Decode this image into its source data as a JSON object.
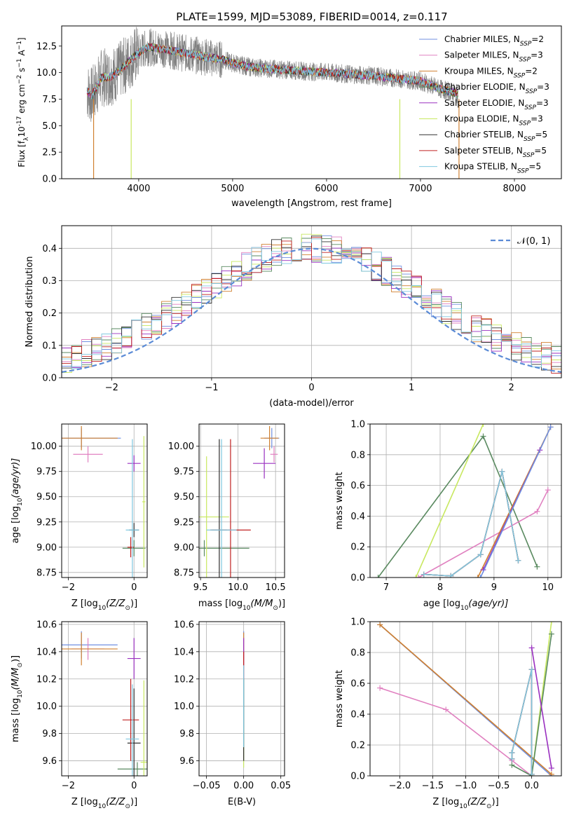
{
  "title": "PLATE=1599, MJD=53089, FIBERID=0014, z=0.117",
  "colors": {
    "Chabrier MILES": "#6f8fe0",
    "Salpeter MILES": "#e080c0",
    "Kroupa MILES": "#d08030",
    "Chabrier ELODIE": "#5a8a60",
    "Salpeter ELODIE": "#9a30c0",
    "Kroupa ELODIE": "#c8e860",
    "Chabrier STELIB": "#303030",
    "Salpeter STELIB": "#c02020",
    "Kroupa STELIB": "#80c8e0",
    "data": "#808080",
    "normal": "#5b8bd6"
  },
  "chart_data": [
    {
      "id": "spectrum",
      "type": "line",
      "xlabel": "wavelength [Angstrom, rest frame]",
      "ylabel": "Flux [f",
      "ylabel_sub": "λ",
      "ylabel_rest": "10",
      "ylabel_exp": "-17",
      "ylabel_tail": " erg cm",
      "xlim": [
        3180,
        8500
      ],
      "ylim": [
        0,
        14.4
      ],
      "xticks": [
        "4000",
        "5000",
        "6000",
        "7000",
        "8000"
      ],
      "yticks": [
        "0.0",
        "2.5",
        "5.0",
        "7.5",
        "10.0",
        "12.5"
      ],
      "legend_position": "upper right",
      "legend": [
        {
          "model": "Chabrier MILES",
          "label": "Chabrier MILES, N",
          "n": "=2"
        },
        {
          "model": "Salpeter MILES",
          "label": "Salpeter MILES, N",
          "n": "=3"
        },
        {
          "model": "Kroupa MILES",
          "label": "Kroupa MILES, N",
          "n": "=2"
        },
        {
          "model": "Chabrier ELODIE",
          "label": "Chabrier ELODIE, N",
          "n": "=3"
        },
        {
          "model": "Salpeter ELODIE",
          "label": "Salpeter ELODIE, N",
          "n": "=3"
        },
        {
          "model": "Kroupa ELODIE",
          "label": "Kroupa ELODIE, N",
          "n": "=3"
        },
        {
          "model": "Chabrier STELIB",
          "label": "Chabrier STELIB, N",
          "n": "=5"
        },
        {
          "model": "Salpeter STELIB",
          "label": "Salpeter STELIB, N",
          "n": "=5"
        },
        {
          "model": "Kroupa STELIB",
          "label": "Kroupa STELIB, N",
          "n": "=5"
        }
      ],
      "model_continuum": {
        "x": [
          3450,
          3500,
          3550,
          3600,
          3700,
          3800,
          3900,
          4000,
          4100,
          4200,
          4300,
          4500,
          4700,
          4900,
          5000,
          5200,
          5500,
          6000,
          6500,
          7000,
          7200,
          7400
        ],
        "y": [
          8.3,
          7.8,
          8.6,
          9.5,
          9.6,
          10.2,
          11.1,
          11.9,
          12.4,
          12.3,
          12.2,
          11.8,
          11.5,
          11.2,
          10.9,
          10.5,
          10.3,
          10.0,
          9.7,
          9.2,
          8.5,
          8.0
        ]
      }
    },
    {
      "id": "residuals",
      "type": "histogram",
      "xlabel": "(data-model)/error",
      "ylabel": "Normed distribution",
      "xlim": [
        -2.5,
        2.5
      ],
      "ylim": [
        0,
        0.47
      ],
      "xticks": [
        "−2",
        "−1",
        "0",
        "1",
        "2"
      ],
      "yticks": [
        "0.0",
        "0.1",
        "0.2",
        "0.3",
        "0.4"
      ],
      "normal_label": "𝒩(0, 1)",
      "grid": true
    },
    {
      "id": "age-Z",
      "type": "errorbar",
      "xlabel": "Z [log",
      "xlabel_sub": "10",
      "xlabel_rest": "(Z/Z",
      "ylabel": "age  [log",
      "ylabel_sub": "10",
      "ylabel_rest": "(age/yr)]",
      "xlim": [
        -2.2,
        0.4
      ],
      "ylim": [
        8.7,
        10.22
      ],
      "xticks": [
        "−2",
        "0"
      ],
      "yticks": [
        "8.75",
        "9.00",
        "9.25",
        "9.50",
        "9.75",
        "10.00"
      ],
      "points": [
        {
          "model": "Chabrier MILES",
          "x": -1.6,
          "xerr": 1.2,
          "y": 10.08,
          "yerr": 0.1
        },
        {
          "model": "Salpeter MILES",
          "x": -1.4,
          "xerr": 0.45,
          "y": 9.92,
          "yerr": 0.08
        },
        {
          "model": "Kroupa MILES",
          "x": -1.6,
          "xerr": 1.1,
          "y": 10.08,
          "yerr": 0.12
        },
        {
          "model": "Chabrier ELODIE",
          "x": 0.0,
          "xerr": 0.35,
          "y": 8.99,
          "yerr": 0.08
        },
        {
          "model": "Salpeter ELODIE",
          "x": 0.0,
          "xerr": 0.2,
          "y": 9.83,
          "yerr": 0.08
        },
        {
          "model": "Kroupa ELODIE",
          "x": 0.3,
          "xerr": 0.05,
          "y": 9.45,
          "yerr": 0.65
        },
        {
          "model": "Chabrier STELIB",
          "x": 0.0,
          "xerr": 0.15,
          "y": 9.17,
          "yerr": 0.07
        },
        {
          "model": "Salpeter STELIB",
          "x": -0.1,
          "xerr": 0.1,
          "y": 9.0,
          "yerr": 0.1
        },
        {
          "model": "Kroupa STELIB",
          "x": -0.05,
          "xerr": 0.2,
          "y": 9.17,
          "yerr": 0.9
        }
      ]
    },
    {
      "id": "age-mass",
      "type": "errorbar",
      "xlabel": "mass [log",
      "xlabel_sub": "10",
      "xlabel_rest": "(M/M",
      "xlim": [
        9.48,
        10.62
      ],
      "ylim": [
        8.7,
        10.22
      ],
      "xticks": [
        "9.5",
        "10.0",
        "10.5"
      ],
      "yticks": [
        "8.75",
        "9.00",
        "9.25",
        "9.50",
        "9.75",
        "10.00"
      ],
      "points": [
        {
          "model": "Chabrier MILES",
          "x": 10.45,
          "xerr": 0.1,
          "y": 10.08,
          "yerr": 0.1
        },
        {
          "model": "Salpeter MILES",
          "x": 10.48,
          "xerr": 0.05,
          "y": 9.92,
          "yerr": 0.08
        },
        {
          "model": "Kroupa MILES",
          "x": 10.42,
          "xerr": 0.12,
          "y": 10.08,
          "yerr": 0.12
        },
        {
          "model": "Chabrier ELODIE",
          "x": 9.55,
          "xerr": 0.6,
          "y": 8.99,
          "yerr": 0.08
        },
        {
          "model": "Salpeter ELODIE",
          "x": 10.35,
          "xerr": 0.15,
          "y": 9.83,
          "yerr": 0.15
        },
        {
          "model": "Kroupa ELODIE",
          "x": 9.58,
          "xerr": 0.3,
          "y": 9.3,
          "yerr": 0.6
        },
        {
          "model": "Chabrier STELIB",
          "x": 9.75,
          "xerr": 0.1,
          "y": 9.17,
          "yerr": 0.9
        },
        {
          "model": "Salpeter STELIB",
          "x": 9.9,
          "xerr": 0.27,
          "y": 9.17,
          "yerr": 0.9
        },
        {
          "model": "Kroupa STELIB",
          "x": 9.78,
          "xerr": 0.2,
          "y": 9.17,
          "yerr": 0.9
        }
      ]
    },
    {
      "id": "weight-age",
      "type": "line",
      "xlabel": "age  [log",
      "xlabel_sub": "10",
      "xlabel_rest": "(age/yr)]",
      "ylabel": "mass weight",
      "xlim": [
        6.7,
        10.25
      ],
      "ylim": [
        0,
        1.0
      ],
      "xticks": [
        "7",
        "8",
        "9",
        "10"
      ],
      "yticks": [
        "0.0",
        "0.2",
        "0.4",
        "0.6",
        "0.8",
        "1.0"
      ],
      "series": [
        {
          "model": "Chabrier ELODIE",
          "x": [
            6.85,
            8.8,
            9.8
          ],
          "y": [
            0.0,
            0.92,
            0.07
          ]
        },
        {
          "model": "Kroupa ELODIE",
          "x": [
            7.55,
            8.8
          ],
          "y": [
            0.0,
            1.0
          ]
        },
        {
          "model": "Salpeter MILES",
          "x": [
            7.6,
            9.8,
            10.0
          ],
          "y": [
            0.0,
            0.43,
            0.57
          ]
        },
        {
          "model": "Kroupa MILES",
          "x": [
            8.7,
            10.05
          ],
          "y": [
            0.0,
            0.98
          ]
        },
        {
          "model": "Salpeter ELODIE",
          "x": [
            8.8,
            9.85
          ],
          "y": [
            0.05,
            0.83
          ]
        },
        {
          "model": "Chabrier MILES",
          "x": [
            8.75,
            10.05
          ],
          "y": [
            0.0,
            0.98
          ]
        },
        {
          "model": "Chabrier STELIB",
          "x": [
            7.7,
            8.2,
            8.75,
            9.15,
            9.45
          ],
          "y": [
            0.02,
            0.01,
            0.15,
            0.69,
            0.11
          ]
        },
        {
          "model": "Salpeter STELIB",
          "x": [
            7.7,
            8.2,
            8.75,
            9.15,
            9.45
          ],
          "y": [
            0.02,
            0.01,
            0.15,
            0.69,
            0.11
          ]
        },
        {
          "model": "Kroupa STELIB",
          "x": [
            7.7,
            8.2,
            8.75,
            9.15,
            9.45
          ],
          "y": [
            0.02,
            0.01,
            0.15,
            0.69,
            0.11
          ]
        }
      ]
    },
    {
      "id": "mass-Z",
      "type": "errorbar",
      "xlabel": "Z [log",
      "xlabel_sub": "10",
      "xlabel_rest": "(Z/Z",
      "ylabel": "mass [log",
      "ylabel_sub": "10",
      "ylabel_rest": "(M/M",
      "xlim": [
        -2.2,
        0.4
      ],
      "ylim": [
        9.49,
        10.62
      ],
      "xticks": [
        "−2",
        "0"
      ],
      "yticks": [
        "9.6",
        "9.8",
        "10.0",
        "10.2",
        "10.4",
        "10.6"
      ],
      "points": [
        {
          "model": "Chabrier MILES",
          "x": -1.6,
          "xerr": 1.1,
          "y": 10.45,
          "yerr": 0.1
        },
        {
          "model": "Salpeter MILES",
          "x": -1.4,
          "xerr": 0.5,
          "y": 10.42,
          "yerr": 0.08
        },
        {
          "model": "Kroupa MILES",
          "x": -1.6,
          "xerr": 1.1,
          "y": 10.42,
          "yerr": 0.12
        },
        {
          "model": "Chabrier ELODIE",
          "x": 0.1,
          "xerr": 0.6,
          "y": 9.54,
          "yerr": 0.05
        },
        {
          "model": "Salpeter ELODIE",
          "x": 0.0,
          "xerr": 0.2,
          "y": 10.35,
          "yerr": 0.15
        },
        {
          "model": "Kroupa ELODIE",
          "x": 0.3,
          "xerr": 0.1,
          "y": 9.59,
          "yerr": 0.6
        },
        {
          "model": "Chabrier STELIB",
          "x": 0.0,
          "xerr": 0.2,
          "y": 9.73,
          "yerr": 0.4
        },
        {
          "model": "Salpeter STELIB",
          "x": -0.1,
          "xerr": 0.25,
          "y": 9.9,
          "yerr": 0.3
        },
        {
          "model": "Kroupa STELIB",
          "x": -0.05,
          "xerr": 0.2,
          "y": 9.76,
          "yerr": 0.4
        }
      ]
    },
    {
      "id": "mass-EBV",
      "type": "errorbar",
      "xlabel": "E(B-V)",
      "xlim": [
        -0.06,
        0.055
      ],
      "ylim": [
        9.49,
        10.62
      ],
      "xticks": [
        "−0.05",
        "0.00",
        "0.05"
      ],
      "yticks": [
        "9.6",
        "9.8",
        "10.0",
        "10.2",
        "10.4",
        "10.6"
      ],
      "points": [
        {
          "model": "Chabrier MILES",
          "x": 0.0,
          "xerr": 0.0,
          "y": 10.45,
          "yerr": 0.1
        },
        {
          "model": "Salpeter MILES",
          "x": 0.0,
          "xerr": 0.0,
          "y": 10.42,
          "yerr": 0.08
        },
        {
          "model": "Kroupa MILES",
          "x": 0.0,
          "xerr": 0.0,
          "y": 10.42,
          "yerr": 0.12
        },
        {
          "model": "Chabrier ELODIE",
          "x": 0.0,
          "xerr": 0.0,
          "y": 9.9,
          "yerr": 0.3
        },
        {
          "model": "Salpeter ELODIE",
          "x": 0.0,
          "xerr": 0.0,
          "y": 10.35,
          "yerr": 0.15
        },
        {
          "model": "Kroupa ELODIE",
          "x": 0.0,
          "xerr": 0.0,
          "y": 9.7,
          "yerr": 0.15
        },
        {
          "model": "Chabrier STELIB",
          "x": 0.0,
          "xerr": 0.0,
          "y": 9.9,
          "yerr": 0.3
        },
        {
          "model": "Salpeter STELIB",
          "x": 0.0,
          "xerr": 0.0,
          "y": 10.3,
          "yerr": 0.1
        },
        {
          "model": "Kroupa STELIB",
          "x": 0.0,
          "xerr": 0.0,
          "y": 10.0,
          "yerr": 0.3
        }
      ]
    },
    {
      "id": "weight-Z",
      "type": "line",
      "xlabel": "Z [log",
      "xlabel_sub": "10",
      "xlabel_rest": "(Z/Z",
      "ylabel": "mass weight",
      "xlim": [
        -2.45,
        0.45
      ],
      "ylim": [
        0,
        1.0
      ],
      "xticks": [
        "−2.0",
        "−1.5",
        "−1.0",
        "−0.5",
        "0.0"
      ],
      "yticks": [
        "0.0",
        "0.2",
        "0.4",
        "0.6",
        "0.8",
        "1.0"
      ],
      "series": [
        {
          "model": "Chabrier MILES",
          "x": [
            -2.3,
            0.3
          ],
          "y": [
            0.98,
            0.0
          ]
        },
        {
          "model": "Kroupa MILES",
          "x": [
            -2.3,
            0.3
          ],
          "y": [
            0.98,
            0.01
          ]
        },
        {
          "model": "Salpeter MILES",
          "x": [
            -2.3,
            -1.3,
            -0.3,
            0.0
          ],
          "y": [
            0.57,
            0.43,
            0.1,
            0.0
          ]
        },
        {
          "model": "Kroupa ELODIE",
          "x": [
            0.0,
            0.3
          ],
          "y": [
            0.0,
            1.0
          ]
        },
        {
          "model": "Chabrier ELODIE",
          "x": [
            -0.3,
            0.0,
            0.3
          ],
          "y": [
            0.07,
            0.0,
            0.92
          ]
        },
        {
          "model": "Salpeter ELODIE",
          "x": [
            0.0,
            0.3
          ],
          "y": [
            0.83,
            0.05
          ]
        },
        {
          "model": "Chabrier STELIB",
          "x": [
            -0.3,
            -0.3,
            0.0,
            0.0
          ],
          "y": [
            0.11,
            0.15,
            0.69,
            0.01
          ]
        },
        {
          "model": "Salpeter STELIB",
          "x": [
            -0.3,
            -0.3,
            0.0,
            0.0
          ],
          "y": [
            0.11,
            0.15,
            0.69,
            0.01
          ]
        },
        {
          "model": "Kroupa STELIB",
          "x": [
            -0.3,
            -0.3,
            0.0,
            0.0
          ],
          "y": [
            0.11,
            0.15,
            0.69,
            0.01
          ]
        }
      ]
    }
  ]
}
